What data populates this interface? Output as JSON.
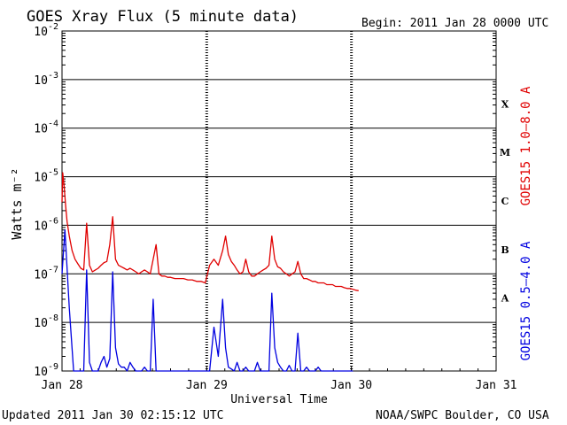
{
  "header": {
    "title": "GOES Xray Flux (5 minute data)",
    "begin": "Begin:  2011 Jan 28 0000 UTC"
  },
  "footer": {
    "updated": "Updated 2011 Jan 30 02:15:12 UTC",
    "credit": "NOAA/SWPC Boulder, CO USA"
  },
  "colors": {
    "long_channel": "#e00000",
    "short_channel": "#0000e0",
    "axes": "#000000"
  },
  "chart_data": {
    "type": "line",
    "title": "GOES Xray Flux (5 minute data)",
    "xlabel": "Universal Time",
    "ylabel": "Watts m⁻²",
    "yscale": "log",
    "ylim": [
      1e-09,
      0.01
    ],
    "xlim": [
      "2011-01-28",
      "2011-01-31"
    ],
    "x_unit": "days",
    "x_ticks": [
      {
        "x": 0,
        "label": "Jan 28"
      },
      {
        "x": 1,
        "label": "Jan 29"
      },
      {
        "x": 2,
        "label": "Jan 30"
      },
      {
        "x": 3,
        "label": "Jan 31"
      }
    ],
    "y_ticks": [
      {
        "base": "10",
        "exp": "-2",
        "value": 0.01
      },
      {
        "base": "10",
        "exp": "-3",
        "value": 0.001
      },
      {
        "base": "10",
        "exp": "-4",
        "value": 0.0001
      },
      {
        "base": "10",
        "exp": "-5",
        "value": 1e-05
      },
      {
        "base": "10",
        "exp": "-6",
        "value": 1e-06
      },
      {
        "base": "10",
        "exp": "-7",
        "value": 1e-07
      },
      {
        "base": "10",
        "exp": "-8",
        "value": 1e-08
      },
      {
        "base": "10",
        "exp": "-9",
        "value": 1e-09
      }
    ],
    "flare_classes": [
      {
        "label": "X",
        "value": 0.000316
      },
      {
        "label": "M",
        "value": 3.16e-05
      },
      {
        "label": "C",
        "value": 3.16e-06
      },
      {
        "label": "B",
        "value": 3.16e-07
      },
      {
        "label": "A",
        "value": 3.16e-08
      }
    ],
    "grid": true,
    "series": [
      {
        "name": "GOES15 1.0–8.0 A",
        "color": "#e00000",
        "x": [
          0.0,
          0.005,
          0.015,
          0.025,
          0.035,
          0.05,
          0.07,
          0.09,
          0.11,
          0.13,
          0.15,
          0.17,
          0.19,
          0.21,
          0.23,
          0.25,
          0.27,
          0.29,
          0.31,
          0.33,
          0.35,
          0.37,
          0.39,
          0.41,
          0.43,
          0.45,
          0.47,
          0.49,
          0.51,
          0.53,
          0.55,
          0.57,
          0.59,
          0.61,
          0.63,
          0.65,
          0.67,
          0.69,
          0.71,
          0.73,
          0.75,
          0.78,
          0.81,
          0.84,
          0.87,
          0.9,
          0.93,
          0.96,
          0.99,
          1.02,
          1.05,
          1.08,
          1.11,
          1.13,
          1.15,
          1.17,
          1.19,
          1.21,
          1.23,
          1.25,
          1.27,
          1.29,
          1.31,
          1.33,
          1.35,
          1.37,
          1.39,
          1.41,
          1.43,
          1.45,
          1.47,
          1.49,
          1.51,
          1.53,
          1.55,
          1.57,
          1.59,
          1.61,
          1.63,
          1.65,
          1.67,
          1.69,
          1.71,
          1.73,
          1.75,
          1.77,
          1.79,
          1.81,
          1.83,
          1.85,
          1.87,
          1.89,
          1.91,
          1.93,
          1.95,
          1.97,
          1.99,
          2.01,
          2.03,
          2.05
        ],
        "values": [
          3e-06,
          1.2e-05,
          6e-06,
          2.5e-06,
          1.2e-06,
          6e-07,
          3e-07,
          2e-07,
          1.6e-07,
          1.3e-07,
          1.2e-07,
          1.1e-06,
          1.5e-07,
          1.1e-07,
          1.2e-07,
          1.3e-07,
          1.5e-07,
          1.7e-07,
          1.8e-07,
          4e-07,
          1.5e-06,
          2e-07,
          1.5e-07,
          1.4e-07,
          1.3e-07,
          1.2e-07,
          1.3e-07,
          1.2e-07,
          1.1e-07,
          1e-07,
          1.1e-07,
          1.2e-07,
          1.1e-07,
          1e-07,
          2e-07,
          4e-07,
          1e-07,
          9e-08,
          9e-08,
          8.5e-08,
          8.5e-08,
          8e-08,
          8e-08,
          8e-08,
          7.5e-08,
          7.5e-08,
          7e-08,
          7e-08,
          6.5e-08,
          1.5e-07,
          2e-07,
          1.5e-07,
          3e-07,
          6e-07,
          2.5e-07,
          1.8e-07,
          1.5e-07,
          1.2e-07,
          1e-07,
          1.1e-07,
          2e-07,
          1.1e-07,
          9e-08,
          9e-08,
          1e-07,
          1.1e-07,
          1.2e-07,
          1.3e-07,
          1.5e-07,
          6e-07,
          2e-07,
          1.4e-07,
          1.3e-07,
          1.1e-07,
          1e-07,
          9e-08,
          1e-07,
          1.1e-07,
          1.8e-07,
          1e-07,
          8e-08,
          8e-08,
          7.5e-08,
          7e-08,
          7e-08,
          6.5e-08,
          6.5e-08,
          6.5e-08,
          6e-08,
          6e-08,
          6e-08,
          5.5e-08,
          5.5e-08,
          5.5e-08,
          5.2e-08,
          5e-08,
          5e-08,
          4.8e-08,
          4.6e-08,
          4.5e-08
        ]
      },
      {
        "name": "GOES15 0.5–4.0 A",
        "color": "#0000e0",
        "x": [
          0.0,
          0.02,
          0.05,
          0.08,
          0.1,
          0.12,
          0.15,
          0.17,
          0.19,
          0.21,
          0.23,
          0.25,
          0.27,
          0.29,
          0.31,
          0.33,
          0.35,
          0.37,
          0.39,
          0.41,
          0.43,
          0.45,
          0.47,
          0.49,
          0.51,
          0.53,
          0.55,
          0.57,
          0.59,
          0.61,
          0.63,
          0.65,
          0.67,
          0.69,
          0.71,
          0.73,
          0.75,
          0.78,
          0.81,
          0.84,
          0.87,
          0.9,
          0.93,
          0.96,
          0.99,
          1.02,
          1.05,
          1.08,
          1.11,
          1.13,
          1.15,
          1.17,
          1.19,
          1.21,
          1.23,
          1.25,
          1.27,
          1.29,
          1.31,
          1.33,
          1.35,
          1.37,
          1.39,
          1.41,
          1.43,
          1.45,
          1.47,
          1.49,
          1.51,
          1.53,
          1.55,
          1.57,
          1.59,
          1.61,
          1.63,
          1.65,
          1.67,
          1.69,
          1.71,
          1.73,
          1.75,
          1.77,
          1.79,
          1.81,
          1.83,
          1.85,
          1.87,
          1.89,
          1.91,
          1.93,
          1.95,
          1.97,
          1.99,
          2.01
        ],
        "values": [
          1e-07,
          8e-07,
          2e-08,
          1e-09,
          1e-09,
          1e-09,
          1e-09,
          1.2e-07,
          1.5e-09,
          1e-09,
          1e-09,
          1e-09,
          1.5e-09,
          2e-09,
          1.2e-09,
          1.8e-09,
          1.1e-07,
          3e-09,
          1.4e-09,
          1.2e-09,
          1.2e-09,
          1e-09,
          1.5e-09,
          1.2e-09,
          1e-09,
          1e-09,
          1e-09,
          1.2e-09,
          1e-09,
          1e-09,
          3e-08,
          1e-09,
          1e-09,
          1e-09,
          1e-09,
          1e-09,
          1e-09,
          1e-09,
          1e-09,
          1e-09,
          1e-09,
          1e-09,
          1e-09,
          1e-09,
          1e-09,
          1e-09,
          8e-09,
          2e-09,
          3e-08,
          3e-09,
          1.2e-09,
          1.1e-09,
          1e-09,
          1.5e-09,
          1e-09,
          1e-09,
          1.2e-09,
          1e-09,
          1e-09,
          1e-09,
          1.5e-09,
          1e-09,
          1e-09,
          1e-09,
          1e-09,
          4e-08,
          3e-09,
          1.5e-09,
          1.2e-09,
          1e-09,
          1e-09,
          1.3e-09,
          1e-09,
          1e-09,
          6e-09,
          1e-09,
          1e-09,
          1.2e-09,
          1e-09,
          1e-09,
          1e-09,
          1.2e-09,
          1e-09,
          1e-09,
          1e-09,
          1e-09,
          1e-09,
          1e-09,
          1e-09,
          1e-09,
          1e-09,
          1e-09,
          1e-09,
          1e-09
        ]
      }
    ]
  }
}
